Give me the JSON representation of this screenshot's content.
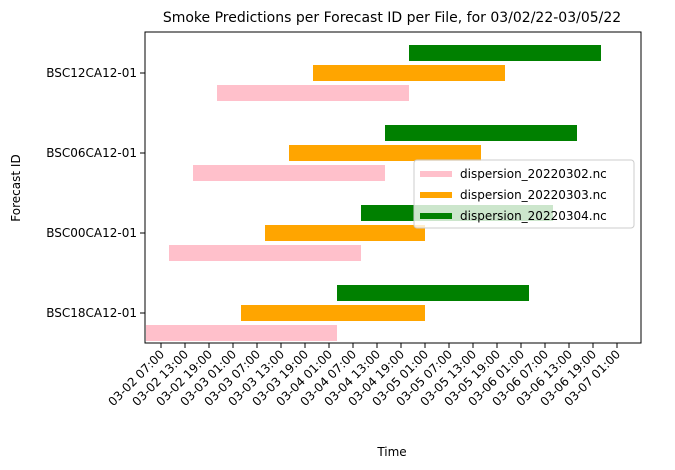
{
  "chart_data": {
    "type": "bar",
    "orientation": "horizontal-timeline",
    "title": "Smoke Predictions per Forecast ID per File, for 03/02/22-03/05/22",
    "xlabel": "Time",
    "ylabel": "Forecast ID",
    "categories": [
      "BSC18CA12-01",
      "BSC00CA12-01",
      "BSC06CA12-01",
      "BSC12CA12-01"
    ],
    "x_range": [
      "2022-03-02 03:00",
      "2022-03-07 07:00"
    ],
    "x_ticks": [
      "03-02 07:00",
      "03-02 13:00",
      "03-02 19:00",
      "03-03 01:00",
      "03-03 07:00",
      "03-03 13:00",
      "03-03 19:00",
      "03-04 01:00",
      "03-04 07:00",
      "03-04 13:00",
      "03-04 19:00",
      "03-05 01:00",
      "03-05 07:00",
      "03-05 13:00",
      "03-05 19:00",
      "03-06 01:00",
      "03-06 07:00",
      "03-06 13:00",
      "03-06 19:00",
      "03-07 01:00"
    ],
    "legend_position": "center-right",
    "grid": false,
    "series": [
      {
        "name": "dispersion_20220302.nc",
        "color": "#ffc0cb",
        "bars": [
          {
            "category": "BSC18CA12-01",
            "start": "2022-03-02 03:00",
            "end": "2022-03-04 03:00"
          },
          {
            "category": "BSC00CA12-01",
            "start": "2022-03-02 09:00",
            "end": "2022-03-04 09:00"
          },
          {
            "category": "BSC06CA12-01",
            "start": "2022-03-02 15:00",
            "end": "2022-03-04 15:00"
          },
          {
            "category": "BSC12CA12-01",
            "start": "2022-03-02 21:00",
            "end": "2022-03-04 21:00"
          }
        ]
      },
      {
        "name": "dispersion_20220303.nc",
        "color": "#ffa500",
        "bars": [
          {
            "category": "BSC18CA12-01",
            "start": "2022-03-03 03:00",
            "end": "2022-03-05 01:00"
          },
          {
            "category": "BSC00CA12-01",
            "start": "2022-03-03 09:00",
            "end": "2022-03-05 01:00"
          },
          {
            "category": "BSC06CA12-01",
            "start": "2022-03-03 15:00",
            "end": "2022-03-05 15:00"
          },
          {
            "category": "BSC12CA12-01",
            "start": "2022-03-03 21:00",
            "end": "2022-03-05 21:00"
          }
        ]
      },
      {
        "name": "dispersion_20220304.nc",
        "color": "#008000",
        "bars": [
          {
            "category": "BSC18CA12-01",
            "start": "2022-03-04 03:00",
            "end": "2022-03-06 03:00"
          },
          {
            "category": "BSC00CA12-01",
            "start": "2022-03-04 09:00",
            "end": "2022-03-06 09:00"
          },
          {
            "category": "BSC06CA12-01",
            "start": "2022-03-04 15:00",
            "end": "2022-03-06 15:00"
          },
          {
            "category": "BSC12CA12-01",
            "start": "2022-03-04 21:00",
            "end": "2022-03-06 21:00"
          }
        ]
      }
    ]
  }
}
